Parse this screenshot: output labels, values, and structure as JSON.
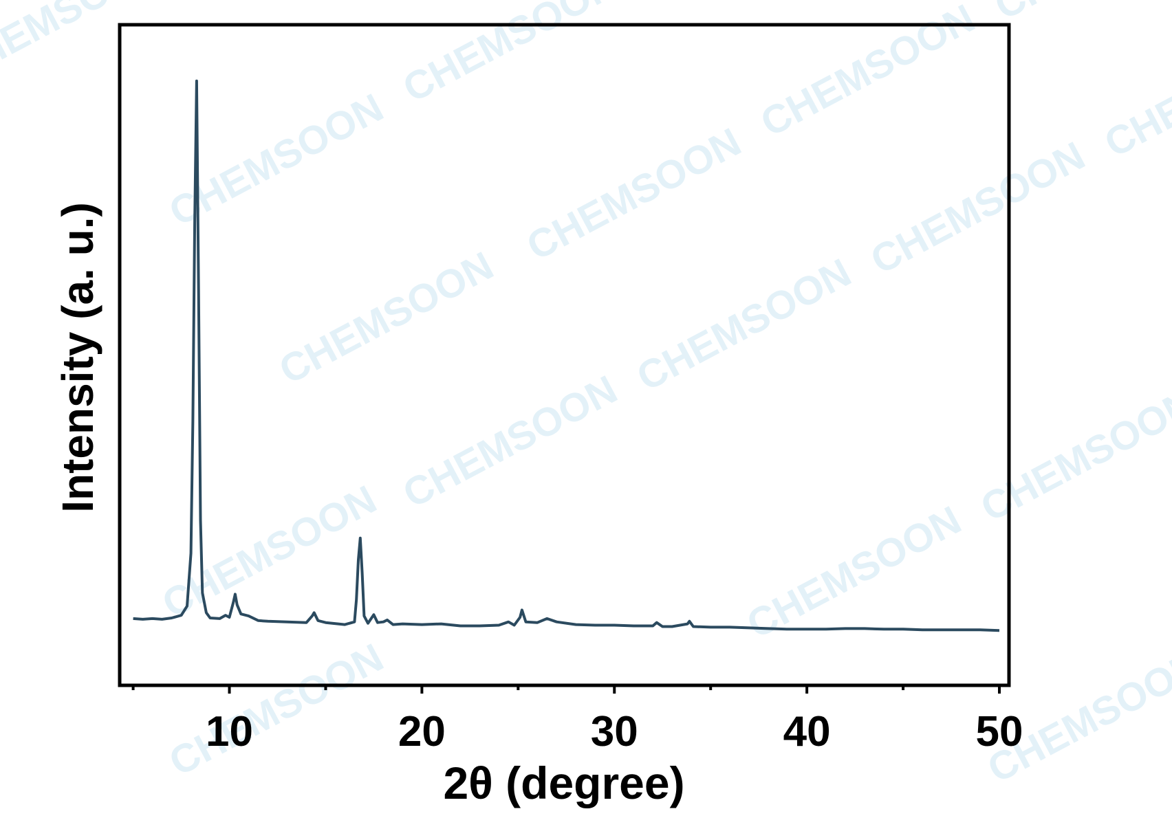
{
  "chart_data": {
    "type": "line",
    "xlabel": "2θ (degree)",
    "ylabel": "Intensity (a. u.)",
    "watermark": "CHEMSOON",
    "color": "#2b4a5f",
    "x": [
      5.0,
      5.5,
      6.0,
      6.5,
      7.0,
      7.5,
      7.8,
      8.0,
      8.1,
      8.2,
      8.3,
      8.4,
      8.5,
      8.6,
      8.8,
      9.0,
      9.5,
      9.8,
      10.0,
      10.2,
      10.3,
      10.4,
      10.6,
      11.0,
      11.5,
      12.0,
      13.0,
      14.0,
      14.3,
      14.4,
      14.6,
      15.0,
      16.0,
      16.5,
      16.6,
      16.7,
      16.8,
      16.9,
      17.0,
      17.2,
      17.5,
      17.7,
      18.0,
      18.2,
      18.5,
      19.0,
      20.0,
      21.0,
      22.0,
      23.0,
      24.0,
      24.5,
      24.8,
      25.1,
      25.2,
      25.4,
      26.0,
      26.5,
      27.0,
      28.0,
      29.0,
      30.0,
      31.0,
      32.0,
      32.2,
      32.5,
      33.0,
      33.8,
      33.9,
      34.1,
      35.0,
      36.0,
      37.0,
      38.0,
      39.0,
      40.0,
      41.0,
      42.0,
      43.0,
      44.0,
      45.0,
      46.0,
      47.0,
      48.0,
      49.0,
      50.0
    ],
    "values": [
      10.1,
      10.0,
      10.1,
      10.0,
      10.2,
      10.6,
      12.0,
      20.0,
      40.0,
      70.0,
      91.5,
      60.0,
      25.0,
      14.0,
      11.0,
      10.2,
      10.1,
      10.6,
      10.3,
      12.5,
      13.8,
      12.2,
      10.8,
      10.5,
      9.8,
      9.7,
      9.6,
      9.5,
      10.5,
      11.0,
      9.8,
      9.5,
      9.2,
      9.6,
      13.0,
      19.0,
      22.3,
      17.0,
      10.5,
      9.4,
      10.7,
      9.5,
      9.6,
      9.9,
      9.2,
      9.3,
      9.2,
      9.3,
      9.0,
      9.0,
      9.1,
      9.6,
      9.1,
      10.3,
      11.4,
      9.6,
      9.5,
      10.1,
      9.6,
      9.2,
      9.1,
      9.1,
      9.0,
      9.0,
      9.5,
      8.9,
      8.9,
      9.3,
      9.7,
      8.9,
      8.8,
      8.8,
      8.7,
      8.6,
      8.5,
      8.5,
      8.5,
      8.6,
      8.6,
      8.5,
      8.5,
      8.4,
      8.4,
      8.4,
      8.4,
      8.3
    ],
    "xlim": [
      4.3,
      50.5
    ],
    "xticks": [
      10,
      20,
      30,
      40,
      50
    ],
    "xminorticks": [
      5,
      15,
      25,
      35,
      45
    ],
    "ylim": [
      0,
      100
    ]
  }
}
